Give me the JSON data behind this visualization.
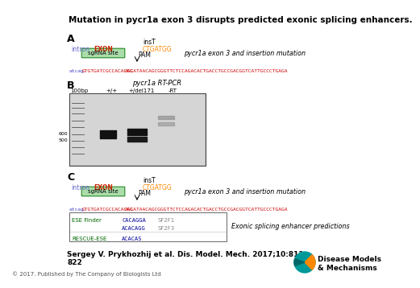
{
  "title": "Mutation in pycr1a exon 3 disrupts predicted exonic splicing enhancers.",
  "bg_color": "#ffffff",
  "intron_color": "#6666cc",
  "exon_color": "#cc2200",
  "pam_color": "#ff8800",
  "sgrna_color": "#000000",
  "sgrna_bg": "#aaddaa",
  "sgrna_border": "#228822",
  "seq_intron_color": "#4444cc",
  "seq_exon_color": "#cc0000",
  "seq_after_color": "#cc0000",
  "ins_label": "insT",
  "intron_label": "intron",
  "exon_label": "EXON",
  "pam_seq": "CTGATGG",
  "sgrna_label": "sgRNA site",
  "pam_label": "PAM",
  "exon3_title": "pycr1a exon 3 and insertion mutation",
  "seq_intron": "atcag",
  "seq_exon": "GTGTGATCGCCACACAC",
  "seq_after": "AGGATAACAGCGGGTTCTCCAGACACTGACCTGCCGACGGTCATTGCCCTGAGA",
  "gel_title": "pycr1a RT-PCR",
  "gel_lane1": "100bp",
  "gel_lane2": "+/+",
  "gel_lane3": "+/del171",
  "gel_lane4": "-RT",
  "gel_600": "600",
  "gel_500": "500",
  "ese_label1": "ESE Finder",
  "ese_seq1": "CACAGGA",
  "ese_score1": "SF2F1",
  "ese_seq2": "ACACAGG",
  "ese_score2": "SF2F3",
  "ese_label2": "RESCUE-ESE",
  "ese_seq3": "ACACAS",
  "ese_title": "Exonic splicing enhancer predictions",
  "citation": "Sergey V. Prykhozhij et al. Dis. Model. Mech. 2017;10:811-\n822",
  "copyright": "© 2017. Published by The Company of Biologists Ltd",
  "dmm_text": "Disease Models\n& Mechanisms",
  "ese_green": "#006600",
  "ese_blue": "#000099",
  "ese_gray": "#888888"
}
